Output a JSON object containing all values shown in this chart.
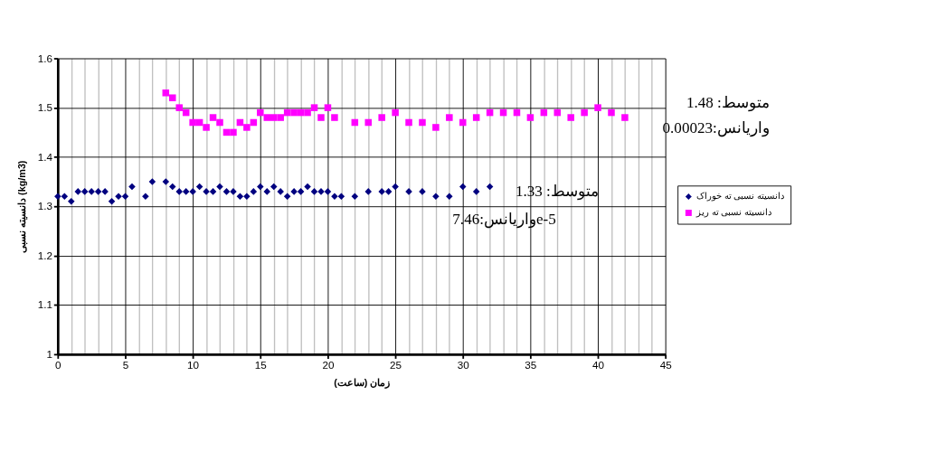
{
  "chart_data": {
    "type": "scatter",
    "xlabel": "زمان (ساعت)",
    "ylabel": "دانسیته نسبی (kg/m3)",
    "xlim": [
      0,
      45
    ],
    "xticks": [
      0,
      {
        "value": 1,
        "label": null
      },
      {
        "value": 2,
        "label": null
      },
      {
        "value": 3,
        "label": null
      },
      {
        "value": 4,
        "label": null
      },
      5,
      {
        "value": 6,
        "label": null
      },
      {
        "value": 7,
        "label": null
      },
      {
        "value": 8,
        "label": null
      },
      {
        "value": 9,
        "label": null
      },
      10,
      {
        "value": 11,
        "label": null
      },
      {
        "value": 12,
        "label": null
      },
      {
        "value": 13,
        "label": null
      },
      {
        "value": 14,
        "label": null
      },
      15,
      {
        "value": 16,
        "label": null
      },
      {
        "value": 17,
        "label": null
      },
      {
        "value": 18,
        "label": null
      },
      {
        "value": 19,
        "label": null
      },
      20,
      {
        "value": 21,
        "label": null
      },
      {
        "value": 22,
        "label": null
      },
      {
        "value": 23,
        "label": null
      },
      {
        "value": 24,
        "label": null
      },
      25,
      {
        "value": 26,
        "label": null
      },
      {
        "value": 27,
        "label": null
      },
      {
        "value": 28,
        "label": null
      },
      {
        "value": 29,
        "label": null
      },
      30,
      {
        "value": 31,
        "label": null
      },
      {
        "value": 32,
        "label": null
      },
      {
        "value": 33,
        "label": null
      },
      {
        "value": 34,
        "label": null
      },
      35,
      {
        "value": 36,
        "label": null
      },
      {
        "value": 37,
        "label": null
      },
      {
        "value": 38,
        "label": null
      },
      {
        "value": 39,
        "label": null
      },
      40,
      {
        "value": 41,
        "label": null
      },
      {
        "value": 42,
        "label": null
      },
      {
        "value": 43,
        "label": null
      },
      {
        "value": 44,
        "label": null
      },
      45
    ],
    "ylim": [
      1,
      1.6
    ],
    "yticks": [
      1,
      1.1,
      1.2,
      1.3,
      1.4,
      1.5,
      1.6
    ],
    "grid": true,
    "legend": "right",
    "series": [
      {
        "name": "دانسیته نسبی ته خوراک",
        "color": "#000080",
        "marker": "diamond",
        "x": [
          0,
          0.5,
          1,
          1.5,
          2,
          2.5,
          3,
          3.5,
          4,
          4.5,
          5,
          5.5,
          6.5,
          7,
          8,
          8.5,
          9,
          9.5,
          10,
          10.5,
          11,
          11.5,
          12,
          12.5,
          13,
          13.5,
          14,
          14.5,
          15,
          15.5,
          16,
          16.5,
          17,
          17.5,
          18,
          18.5,
          19,
          19.5,
          20,
          20.5,
          21,
          22,
          23,
          24,
          24.5,
          25,
          26,
          27,
          28,
          29,
          30,
          31,
          32
        ],
        "values": [
          1.32,
          1.32,
          1.31,
          1.33,
          1.33,
          1.33,
          1.33,
          1.33,
          1.31,
          1.32,
          1.32,
          1.34,
          1.32,
          1.35,
          1.35,
          1.34,
          1.33,
          1.33,
          1.33,
          1.34,
          1.33,
          1.33,
          1.34,
          1.33,
          1.33,
          1.32,
          1.32,
          1.33,
          1.34,
          1.33,
          1.34,
          1.33,
          1.32,
          1.33,
          1.33,
          1.34,
          1.33,
          1.33,
          1.33,
          1.32,
          1.32,
          1.32,
          1.33,
          1.33,
          1.33,
          1.34,
          1.33,
          1.33,
          1.32,
          1.32,
          1.34,
          1.33,
          1.34
        ]
      },
      {
        "name": "دانسیته نسبی ته ریز",
        "color": "#ff00ff",
        "marker": "square",
        "x": [
          8,
          8.5,
          9,
          9.5,
          10,
          10.5,
          11,
          11.5,
          12,
          12.5,
          13,
          13.5,
          14,
          14.5,
          15,
          15.5,
          16,
          16.5,
          17,
          17.5,
          18,
          18.5,
          19,
          19.5,
          20,
          20.5,
          22,
          23,
          24,
          25,
          26,
          27,
          28,
          29,
          30,
          31,
          32,
          33,
          34,
          35,
          36,
          37,
          38,
          39,
          40,
          41,
          42
        ],
        "values": [
          1.53,
          1.52,
          1.5,
          1.49,
          1.47,
          1.47,
          1.46,
          1.48,
          1.47,
          1.45,
          1.45,
          1.47,
          1.46,
          1.47,
          1.49,
          1.48,
          1.48,
          1.48,
          1.49,
          1.49,
          1.49,
          1.49,
          1.5,
          1.48,
          1.5,
          1.48,
          1.47,
          1.47,
          1.48,
          1.49,
          1.47,
          1.47,
          1.46,
          1.48,
          1.47,
          1.48,
          1.49,
          1.49,
          1.49,
          1.48,
          1.49,
          1.49,
          1.48,
          1.49,
          1.5,
          1.49,
          1.48
        ]
      }
    ],
    "annotations": [
      "متوسط: 1.48",
      "واریانس:0.00023",
      "متوسط: 1.33",
      "واریانس:7.46e-5"
    ]
  }
}
